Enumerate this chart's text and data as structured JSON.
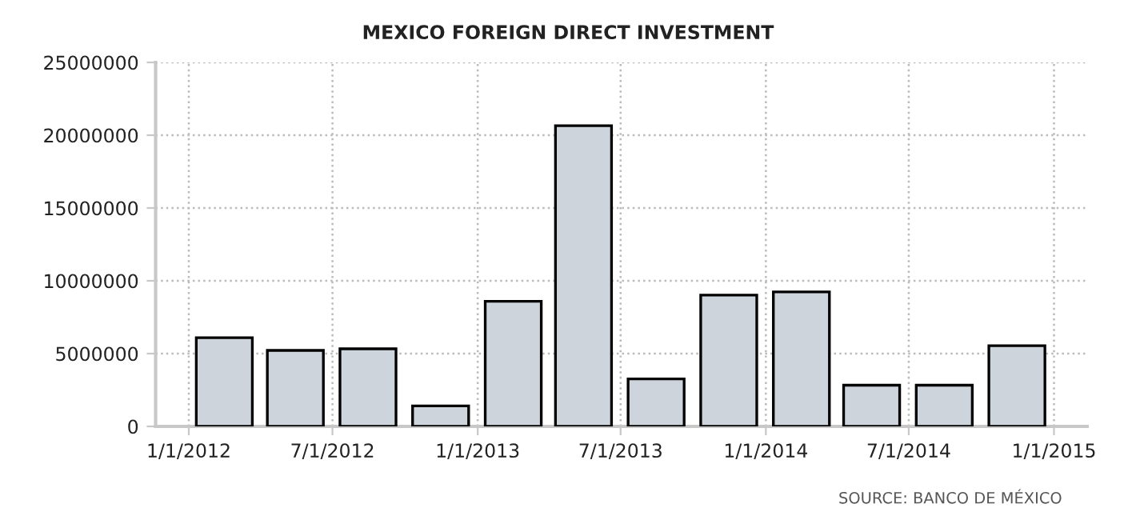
{
  "chart_data": {
    "type": "bar",
    "title": "MEXICO FOREIGN DIRECT INVESTMENT",
    "x": [
      "2012-02-15",
      "2012-05-15",
      "2012-08-15",
      "2012-11-15",
      "2013-02-15",
      "2013-05-15",
      "2013-08-15",
      "2013-11-15",
      "2014-02-15",
      "2014-05-15",
      "2014-08-15",
      "2014-11-15"
    ],
    "values": [
      6090000,
      5220000,
      5330000,
      1410000,
      8590000,
      20650000,
      3260000,
      9020000,
      9240000,
      2830000,
      2830000,
      5540000
    ],
    "color": "#cdd4dc",
    "xlim": [
      "2011-11-20",
      "2015-02-12"
    ],
    "xticks": [
      {
        "value": "2012-01-01",
        "label": "1/1/2012"
      },
      {
        "value": "2012-07-01",
        "label": "7/1/2012"
      },
      {
        "value": "2013-01-01",
        "label": "1/1/2013"
      },
      {
        "value": "2013-07-01",
        "label": "7/1/2013"
      },
      {
        "value": "2014-01-01",
        "label": "1/1/2014"
      },
      {
        "value": "2014-07-01",
        "label": "7/1/2014"
      },
      {
        "value": "2015-01-01",
        "label": "1/1/2015"
      }
    ],
    "ylim": [
      0,
      25000000
    ],
    "yticks": [
      0,
      5000000,
      10000000,
      15000000,
      20000000,
      25000000
    ],
    "grid": true,
    "annotations": [
      "SOURCE: BANCO DE MÉXICO"
    ]
  }
}
